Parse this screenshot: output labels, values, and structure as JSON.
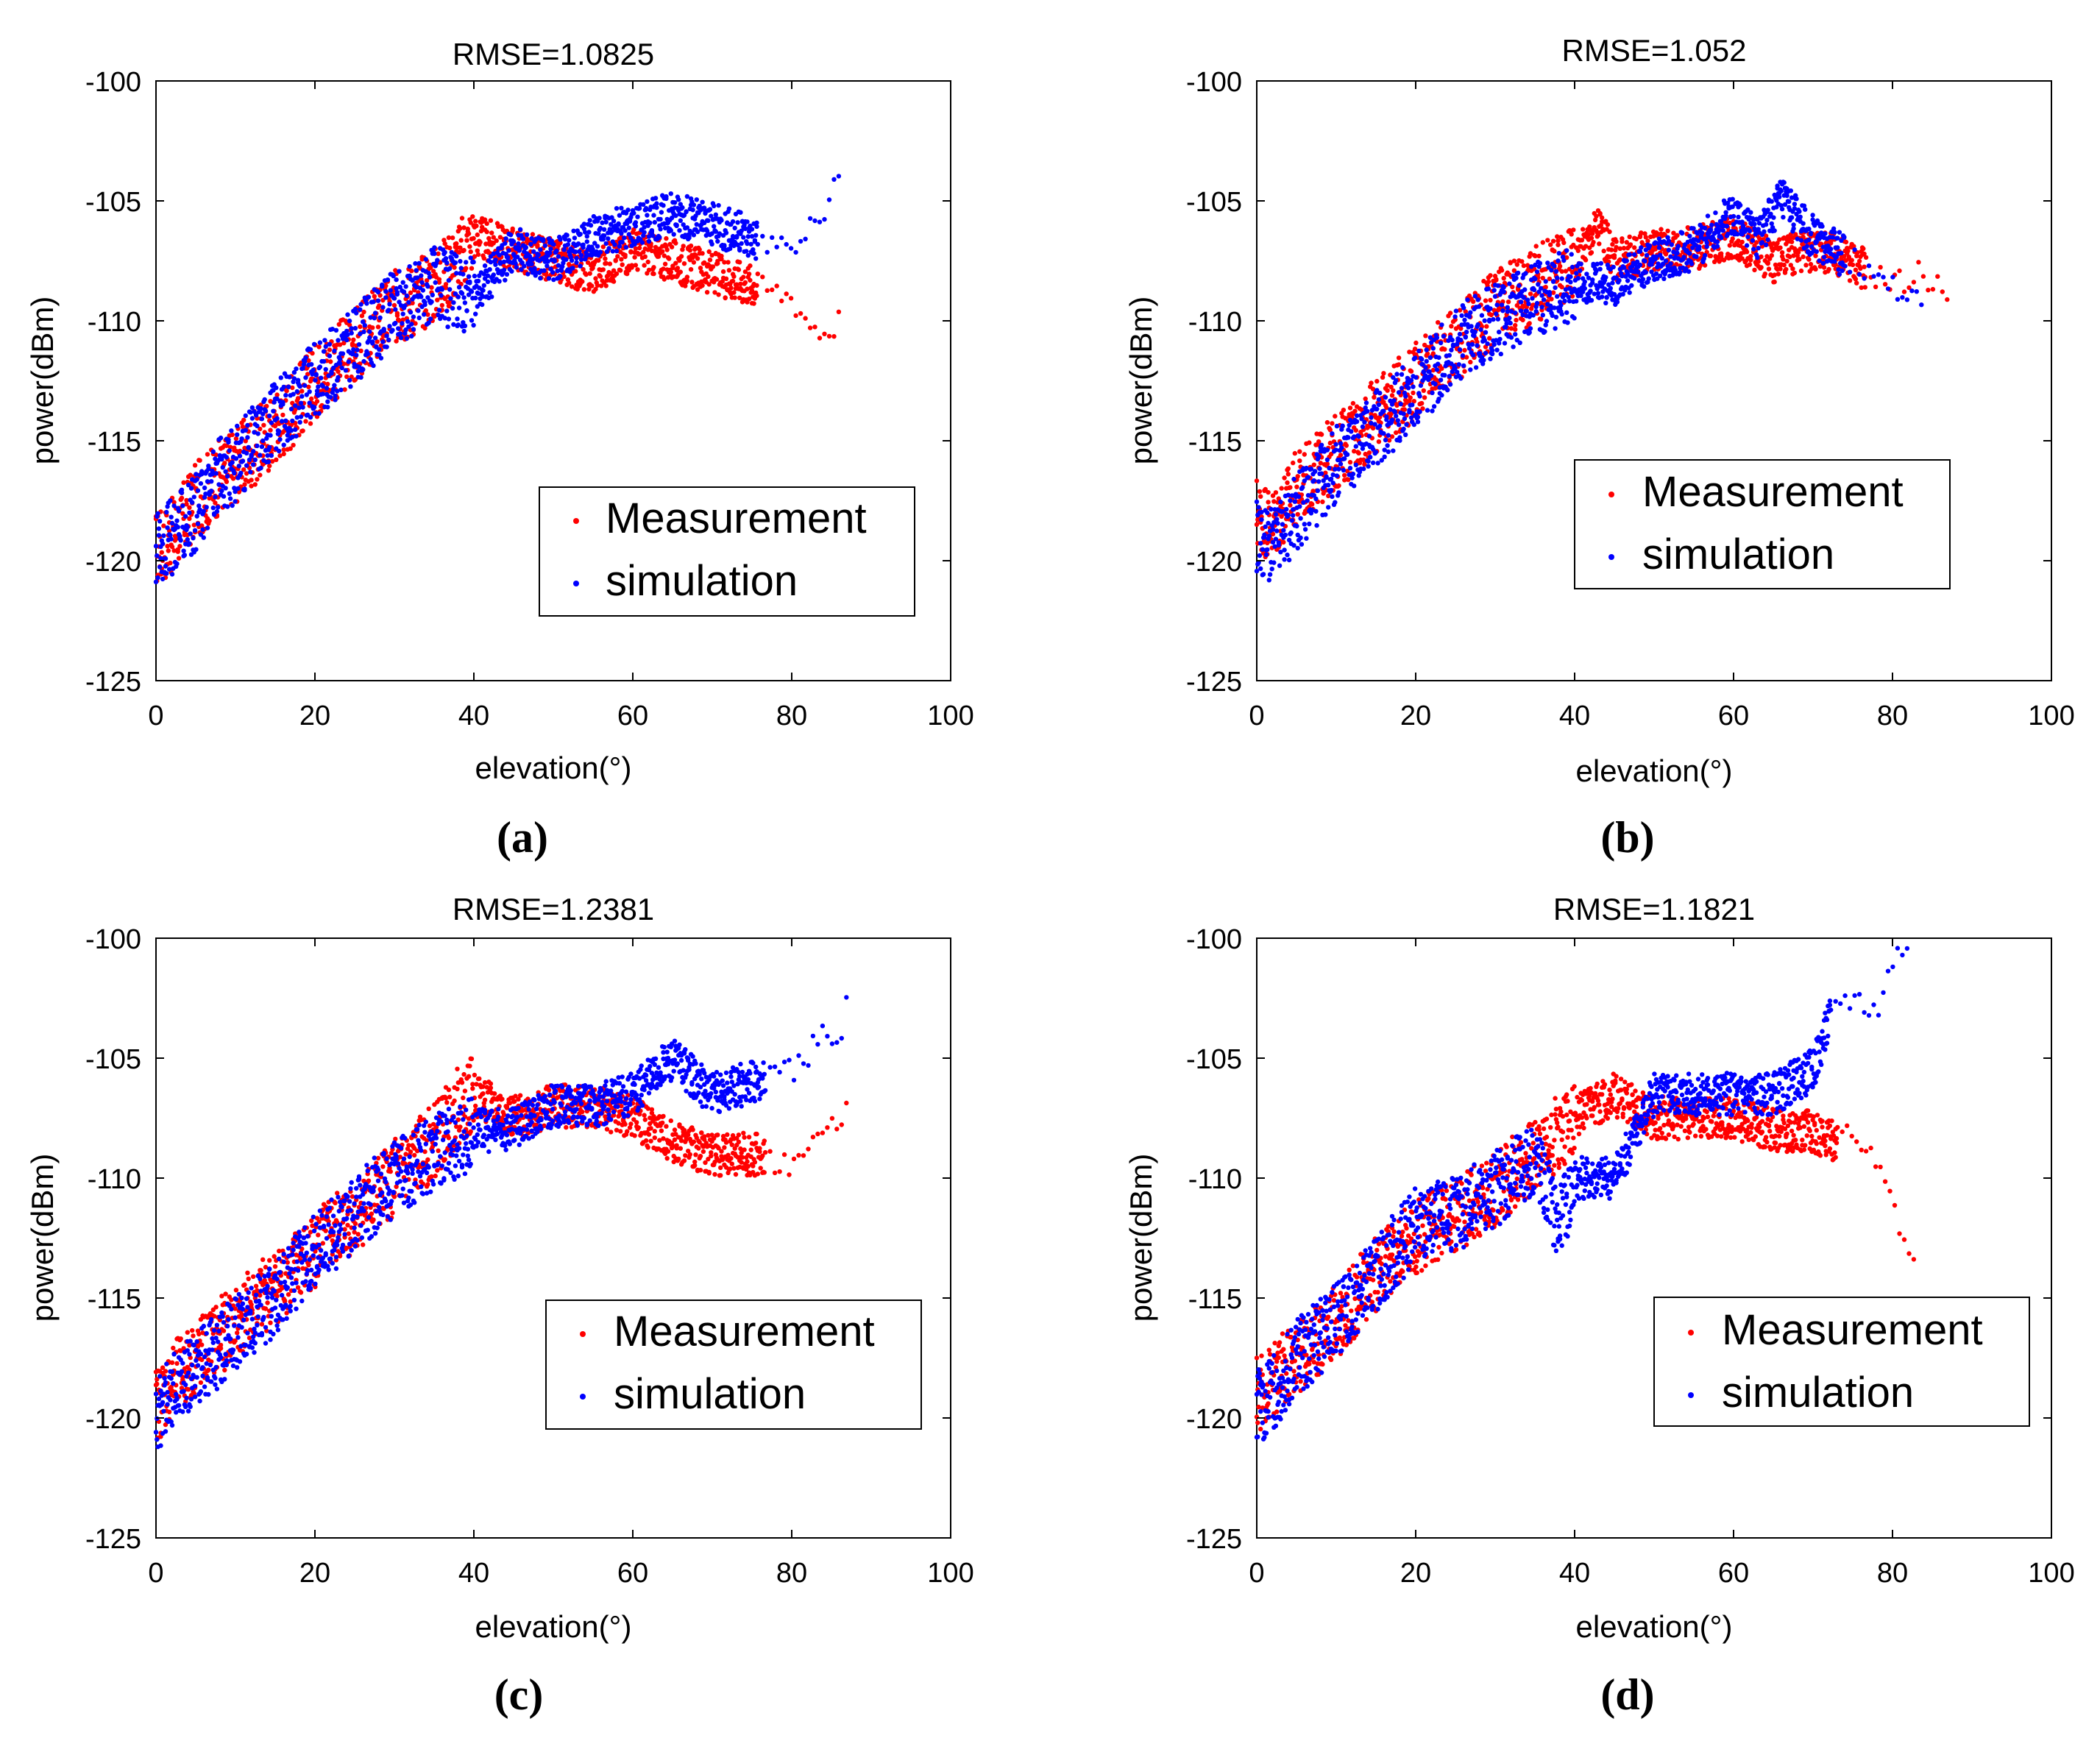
{
  "chart_data": [
    {
      "type": "scatter",
      "title": "RMSE=1.0825",
      "xlabel": "elevation(°)",
      "ylabel": "power(dBm)",
      "xlim": [
        0,
        100
      ],
      "ylim": [
        -125,
        -100
      ],
      "xticks": [
        "0",
        "20",
        "40",
        "60",
        "80",
        "100"
      ],
      "yticks": [
        "-100",
        "-105",
        "-110",
        "-115",
        "-120",
        "-125"
      ],
      "panel_label": "(a)",
      "legend": [
        "Measurement",
        "simulation"
      ],
      "legend_position": "lower-right",
      "series": [
        {
          "name": "Measurement",
          "color": "#ff0000",
          "x": [
            0,
            2,
            5,
            8,
            10,
            15,
            20,
            25,
            30,
            35,
            38,
            40,
            45,
            50,
            55,
            60,
            65,
            70,
            75,
            80,
            82,
            84,
            86
          ],
          "y": [
            -119.5,
            -119,
            -117.5,
            -116.5,
            -116,
            -114.5,
            -112.5,
            -111,
            -109.5,
            -108.5,
            -107.5,
            -106.5,
            -107,
            -107.5,
            -108,
            -107,
            -107.5,
            -108,
            -108.5,
            -109,
            -110,
            -110.5,
            -110
          ]
        },
        {
          "name": "simulation",
          "color": "#0000ff",
          "x": [
            0,
            2,
            5,
            8,
            10,
            15,
            20,
            25,
            30,
            35,
            40,
            45,
            50,
            55,
            60,
            65,
            70,
            75,
            80,
            83,
            85,
            86
          ],
          "y": [
            -119.5,
            -119,
            -118,
            -116.5,
            -116,
            -114,
            -112.5,
            -111,
            -109.5,
            -108.5,
            -109,
            -107,
            -107.5,
            -106.5,
            -106,
            -105.5,
            -106,
            -106.5,
            -107,
            -106,
            -105,
            -104
          ]
        }
      ]
    },
    {
      "type": "scatter",
      "title": "RMSE=1.052",
      "xlabel": "elevation(°)",
      "ylabel": "power(dBm)",
      "xlim": [
        0,
        100
      ],
      "ylim": [
        -125,
        -100
      ],
      "xticks": [
        "0",
        "20",
        "40",
        "60",
        "80",
        "100"
      ],
      "yticks": [
        "-100",
        "-105",
        "-110",
        "-115",
        "-120",
        "-125"
      ],
      "panel_label": "(b)",
      "legend": [
        "Measurement",
        "simulation"
      ],
      "legend_position": "lower-right",
      "series": [
        {
          "name": "Measurement",
          "color": "#ff0000",
          "x": [
            0,
            2,
            5,
            10,
            15,
            20,
            25,
            30,
            35,
            40,
            43,
            45,
            50,
            55,
            60,
            65,
            70,
            75,
            80,
            84,
            87
          ],
          "y": [
            -118,
            -118.5,
            -117,
            -115.5,
            -114,
            -112.5,
            -111,
            -109.5,
            -108.5,
            -107.5,
            -106,
            -107.5,
            -107,
            -107,
            -106.5,
            -107.5,
            -107,
            -107.5,
            -108.5,
            -108,
            -109
          ]
        },
        {
          "name": "simulation",
          "color": "#0000ff",
          "x": [
            0,
            2,
            5,
            10,
            15,
            20,
            25,
            30,
            35,
            40,
            45,
            50,
            55,
            60,
            63,
            66,
            70,
            75,
            80,
            84
          ],
          "y": [
            -119,
            -119.5,
            -118,
            -116,
            -114.5,
            -113,
            -111,
            -110,
            -109,
            -108.5,
            -108.5,
            -107.5,
            -107,
            -105.5,
            -106.5,
            -105,
            -106.5,
            -107.5,
            -108.5,
            -109
          ]
        }
      ]
    },
    {
      "type": "scatter",
      "title": "RMSE=1.2381",
      "xlabel": "elevation(°)",
      "ylabel": "power(dBm)",
      "xlim": [
        0,
        100
      ],
      "ylim": [
        -125,
        -100
      ],
      "xticks": [
        "0",
        "20",
        "40",
        "60",
        "80",
        "100"
      ],
      "yticks": [
        "-100",
        "-105",
        "-110",
        "-115",
        "-120",
        "-125"
      ],
      "panel_label": "(c)",
      "legend": [
        "Measurement",
        "simulation"
      ],
      "legend_position": "lower-right",
      "series": [
        {
          "name": "Measurement",
          "color": "#ff0000",
          "x": [
            0,
            2,
            5,
            10,
            15,
            20,
            25,
            30,
            35,
            38,
            40,
            45,
            50,
            55,
            60,
            65,
            70,
            75,
            80,
            82,
            84,
            86,
            87
          ],
          "y": [
            -119.5,
            -118.5,
            -117.5,
            -116,
            -114.5,
            -113,
            -111.5,
            -110,
            -108.5,
            -107,
            -106.5,
            -107.5,
            -107,
            -107,
            -107.5,
            -108.5,
            -109,
            -109,
            -109.5,
            -109,
            -108,
            -108,
            -107
          ]
        },
        {
          "name": "simulation",
          "color": "#0000ff",
          "x": [
            0,
            2,
            5,
            10,
            15,
            20,
            25,
            30,
            35,
            40,
            45,
            50,
            55,
            60,
            65,
            70,
            75,
            80,
            84,
            86,
            87
          ],
          "y": [
            -120,
            -119,
            -118,
            -116.5,
            -115,
            -113,
            -111.5,
            -110,
            -109,
            -108,
            -108,
            -107,
            -107,
            -106.5,
            -105,
            -106.5,
            -106,
            -105.5,
            -104,
            -105,
            -102
          ]
        }
      ]
    },
    {
      "type": "scatter",
      "title": "RMSE=1.1821",
      "xlabel": "elevation(°)",
      "ylabel": "power(dBm)",
      "xlim": [
        0,
        100
      ],
      "ylim": [
        -125,
        -100
      ],
      "xticks": [
        "0",
        "20",
        "40",
        "60",
        "80",
        "100"
      ],
      "yticks": [
        "-100",
        "-105",
        "-110",
        "-115",
        "-120",
        "-125"
      ],
      "panel_label": "(d)",
      "legend": [
        "Measurement",
        "simulation"
      ],
      "legend_position": "lower-right",
      "series": [
        {
          "name": "Measurement",
          "color": "#ff0000",
          "x": [
            0,
            2,
            5,
            10,
            15,
            20,
            25,
            30,
            35,
            40,
            45,
            50,
            55,
            60,
            65,
            70,
            72,
            75,
            78,
            80,
            82,
            83
          ],
          "y": [
            -119,
            -118.5,
            -117.5,
            -116,
            -114,
            -112.5,
            -111.5,
            -110.5,
            -109,
            -107.5,
            -106.5,
            -107.5,
            -107.5,
            -107.5,
            -108,
            -108,
            -108.5,
            -108,
            -109.5,
            -111,
            -113,
            -114
          ]
        },
        {
          "name": "simulation",
          "color": "#0000ff",
          "x": [
            0,
            2,
            5,
            10,
            15,
            20,
            25,
            30,
            35,
            38,
            40,
            45,
            50,
            55,
            60,
            65,
            70,
            73,
            75,
            78,
            80,
            82
          ],
          "y": [
            -119.5,
            -119,
            -117.5,
            -116,
            -114,
            -112,
            -111.5,
            -110.5,
            -109,
            -112,
            -110,
            -110,
            -106.5,
            -106.5,
            -106.5,
            -106.5,
            -105.5,
            -102.5,
            -102.5,
            -103,
            -101,
            -100
          ]
        }
      ]
    }
  ]
}
